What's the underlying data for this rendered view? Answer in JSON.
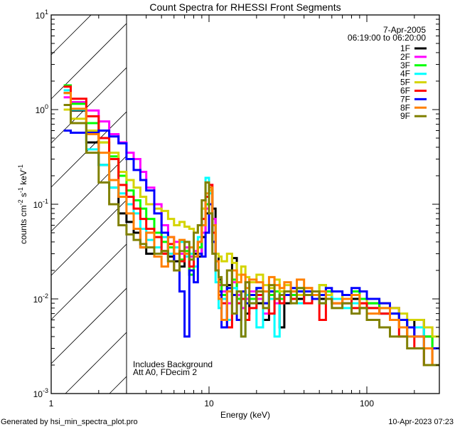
{
  "chart_data": {
    "type": "line",
    "title": "Count Spectra for RHESSI Front Segments",
    "xlabel": "Energy (keV)",
    "ylabel_parts": [
      "counts cm",
      "-2",
      " s",
      "-1",
      " keV",
      "-1"
    ],
    "xscale": "log",
    "yscale": "log",
    "xlim": [
      1,
      288
    ],
    "ylim": [
      0.001,
      10
    ],
    "x_tick_labels": [
      "1",
      "10",
      "100"
    ],
    "x_tick_values": [
      1,
      10,
      100
    ],
    "y_tick_values": [
      10,
      1,
      0.1,
      0.01,
      0.001
    ],
    "y_tick_labels": [
      {
        "base": "10",
        "exp": "1"
      },
      {
        "base": "10",
        "exp": "0"
      },
      {
        "base": "10",
        "exp": "-1"
      },
      {
        "base": "10",
        "exp": "-2"
      },
      {
        "base": "10",
        "exp": "-3"
      }
    ],
    "excluded_region_keV": [
      1,
      3
    ],
    "legend_header": [
      "7-Apr-2005",
      "06:19:00 to 06:20:00"
    ],
    "legend_position": "top-right",
    "annotations": [
      "Includes Background",
      "Att A0, FDecim 2"
    ],
    "energy_edges": [
      1.2,
      1.33,
      1.67,
      2.0,
      2.33,
      2.67,
      3.0,
      3.33,
      3.67,
      4.0,
      4.5,
      5,
      5.5,
      6,
      6.5,
      7,
      7.5,
      8,
      8.5,
      9,
      9.5,
      10,
      10.5,
      11,
      11.5,
      12,
      13,
      14,
      15,
      16,
      17,
      18,
      20,
      22,
      24,
      26,
      28,
      30,
      33,
      36,
      40,
      45,
      50,
      55,
      60,
      70,
      80,
      90,
      100,
      120,
      140,
      160,
      180,
      200,
      230,
      260,
      300
    ],
    "series": [
      {
        "name": "1F",
        "color": "#000000",
        "values": [
          1.5,
          0.98,
          0.45,
          0.26,
          0.15,
          0.08,
          0.065,
          0.05,
          0.035,
          0.03,
          0.03,
          0.032,
          0.028,
          0.025,
          0.022,
          0.028,
          0.018,
          0.03,
          0.028,
          0.045,
          0.08,
          0.14,
          0.09,
          0.03,
          0.016,
          0.012,
          0.014,
          0.027,
          0.01,
          0.012,
          0.007,
          0.011,
          0.009,
          0.006,
          0.012,
          0.01,
          0.005,
          0.009,
          0.011,
          0.01,
          0.012,
          0.011,
          0.01,
          0.012,
          0.009,
          0.009,
          0.01,
          0.008,
          0.009,
          0.007,
          0.008,
          0.006,
          0.005,
          0.006,
          0.004,
          0.003
        ]
      },
      {
        "name": "2F",
        "color": "#ff00ff",
        "values": [
          1.35,
          1.2,
          0.98,
          0.75,
          0.55,
          0.45,
          0.35,
          0.3,
          0.22,
          0.15,
          0.1,
          0.06,
          0.045,
          0.04,
          0.03,
          0.035,
          0.028,
          0.032,
          0.03,
          0.05,
          0.09,
          0.16,
          0.07,
          0.025,
          0.014,
          0.012,
          0.009,
          0.015,
          0.011,
          0.008,
          0.01,
          0.012,
          0.01,
          0.007,
          0.011,
          0.009,
          0.01,
          0.012,
          0.01,
          0.011,
          0.013,
          0.01,
          0.011,
          0.012,
          0.01,
          0.009,
          0.011,
          0.009,
          0.008,
          0.007,
          0.008,
          0.006,
          0.005,
          0.004,
          0.005,
          0.003
        ]
      },
      {
        "name": "3F",
        "color": "#00ff00",
        "values": [
          1.8,
          1.15,
          0.72,
          0.45,
          0.32,
          0.2,
          0.14,
          0.11,
          0.09,
          0.07,
          0.05,
          0.04,
          0.035,
          0.03,
          0.026,
          0.032,
          0.018,
          0.028,
          0.035,
          0.06,
          0.1,
          0.15,
          0.06,
          0.02,
          0.015,
          0.011,
          0.013,
          0.016,
          0.01,
          0.012,
          0.009,
          0.01,
          0.013,
          0.009,
          0.011,
          0.012,
          0.01,
          0.012,
          0.011,
          0.013,
          0.012,
          0.011,
          0.014,
          0.012,
          0.01,
          0.011,
          0.012,
          0.01,
          0.009,
          0.008,
          0.007,
          0.006,
          0.005,
          0.005,
          0.004,
          0.003
        ]
      },
      {
        "name": "4F",
        "color": "#00ffff",
        "values": [
          1.6,
          1.0,
          0.38,
          0.26,
          0.15,
          0.13,
          0.1,
          0.08,
          0.055,
          0.042,
          0.035,
          0.045,
          0.03,
          0.035,
          0.04,
          0.028,
          0.03,
          0.022,
          0.045,
          0.09,
          0.19,
          0.13,
          0.04,
          0.015,
          0.008,
          0.01,
          0.006,
          0.013,
          0.009,
          0.004,
          0.011,
          0.009,
          0.005,
          0.012,
          0.01,
          0.004,
          0.009,
          0.011,
          0.01,
          0.009,
          0.012,
          0.01,
          0.009,
          0.011,
          0.01,
          0.008,
          0.009,
          0.008,
          0.008,
          0.007,
          0.006,
          0.005,
          0.004,
          0.005,
          0.003,
          0.002
        ]
      },
      {
        "name": "5F",
        "color": "#d4d400",
        "values": [
          1.0,
          0.8,
          0.6,
          0.45,
          0.35,
          0.22,
          0.18,
          0.15,
          0.12,
          0.1,
          0.09,
          0.085,
          0.07,
          0.06,
          0.065,
          0.058,
          0.055,
          0.05,
          0.06,
          0.09,
          0.17,
          0.14,
          0.05,
          0.03,
          0.028,
          0.025,
          0.03,
          0.024,
          0.018,
          0.022,
          0.017,
          0.015,
          0.018,
          0.014,
          0.013,
          0.016,
          0.012,
          0.014,
          0.012,
          0.011,
          0.013,
          0.012,
          0.014,
          0.011,
          0.012,
          0.01,
          0.011,
          0.009,
          0.01,
          0.009,
          0.008,
          0.007,
          0.006,
          0.006,
          0.005,
          0.004
        ]
      },
      {
        "name": "6F",
        "color": "#ff0000",
        "values": [
          1.75,
          1.3,
          0.85,
          0.5,
          0.3,
          0.16,
          0.12,
          0.09,
          0.07,
          0.055,
          0.045,
          0.03,
          0.038,
          0.02,
          0.025,
          0.03,
          0.022,
          0.028,
          0.04,
          0.07,
          0.12,
          0.16,
          0.05,
          0.02,
          0.011,
          0.009,
          0.005,
          0.011,
          0.009,
          0.01,
          0.006,
          0.008,
          0.011,
          0.009,
          0.007,
          0.01,
          0.009,
          0.011,
          0.01,
          0.012,
          0.009,
          0.011,
          0.006,
          0.01,
          0.009,
          0.01,
          0.008,
          0.009,
          0.008,
          0.007,
          0.006,
          0.004,
          0.005,
          0.003,
          0.002,
          0.003
        ]
      },
      {
        "name": "7F",
        "color": "#0000ff",
        "values": [
          0.6,
          0.57,
          0.57,
          0.6,
          0.52,
          0.44,
          0.3,
          0.23,
          0.18,
          0.14,
          0.08,
          0.05,
          0.025,
          0.03,
          0.012,
          0.004,
          0.02,
          0.015,
          0.03,
          0.028,
          0.05,
          0.1,
          0.04,
          0.02,
          0.012,
          0.005,
          0.013,
          0.011,
          0.006,
          0.012,
          0.009,
          0.011,
          0.013,
          0.009,
          0.012,
          0.01,
          0.011,
          0.011,
          0.013,
          0.012,
          0.012,
          0.01,
          0.011,
          0.013,
          0.012,
          0.011,
          0.013,
          0.012,
          0.01,
          0.009,
          0.007,
          0.006,
          0.005,
          0.004,
          0.003,
          0.003
        ]
      },
      {
        "name": "8F",
        "color": "#ff8000",
        "values": [
          1.5,
          1.02,
          0.55,
          0.35,
          0.18,
          0.12,
          0.08,
          0.055,
          0.035,
          0.05,
          0.028,
          0.022,
          0.045,
          0.03,
          0.042,
          0.03,
          0.035,
          0.028,
          0.04,
          0.06,
          0.13,
          0.15,
          0.06,
          0.025,
          0.01,
          0.006,
          0.012,
          0.02,
          0.015,
          0.018,
          0.013,
          0.016,
          0.015,
          0.012,
          0.017,
          0.014,
          0.013,
          0.015,
          0.012,
          0.016,
          0.013,
          0.011,
          0.012,
          0.01,
          0.009,
          0.01,
          0.011,
          0.008,
          0.007,
          0.008,
          0.006,
          0.005,
          0.004,
          0.004,
          0.003,
          0.002
        ]
      },
      {
        "name": "9F",
        "color": "#808000",
        "values": [
          1.12,
          0.72,
          0.35,
          0.17,
          0.1,
          0.06,
          0.048,
          0.042,
          0.038,
          0.035,
          0.03,
          0.032,
          0.025,
          0.02,
          0.032,
          0.04,
          0.026,
          0.05,
          0.06,
          0.11,
          0.17,
          0.08,
          0.03,
          0.02,
          0.017,
          0.014,
          0.02,
          0.007,
          0.012,
          0.004,
          0.015,
          0.009,
          0.012,
          0.008,
          0.014,
          0.01,
          0.011,
          0.012,
          0.009,
          0.013,
          0.011,
          0.012,
          0.009,
          0.01,
          0.008,
          0.009,
          0.007,
          0.008,
          0.006,
          0.005,
          0.004,
          0.004,
          0.003,
          0.003,
          0.002,
          0.002
        ]
      }
    ]
  },
  "footer": {
    "generated_by": "Generated by hsi_min_spectra_plot.pro",
    "timestamp": "10-Apr-2023 07:23"
  }
}
